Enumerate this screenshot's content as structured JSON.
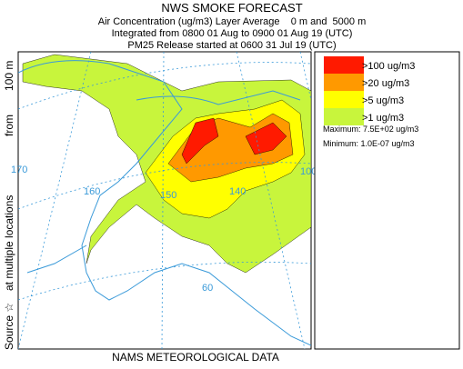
{
  "header": {
    "title": "NWS SMOKE FORECAST",
    "lines": [
      "Air Concentration (ug/m3) Layer Average    0 m and  5000 m",
      "Integrated from 0800 01 Aug to 0900 01 Aug 19 (UTC)",
      "PM25 Release started at 0600 31 Jul 19 (UTC)"
    ]
  },
  "side_label": [
    "Source ☆",
    "at multiple locations",
    "from",
    "100 m"
  ],
  "footer": "NAMS METEOROLOGICAL DATA",
  "legend": {
    "items": [
      {
        "label": ">100 ug/m3",
        "color": "#ff1a00"
      },
      {
        "label": ">20 ug/m3",
        "color": "#ff9900"
      },
      {
        "label": ">5 ug/m3",
        "color": "#ffff00"
      },
      {
        "label": ">1 ug/m3",
        "color": "#c8f53c"
      }
    ],
    "maximum": "Maximum: 7.5E+02 ug/m3",
    "minimum": "Minimum: 1.0E-07 ug/m3"
  },
  "map": {
    "grid_labels": [
      "170",
      "160",
      "150",
      "140",
      "100",
      "60"
    ]
  }
}
